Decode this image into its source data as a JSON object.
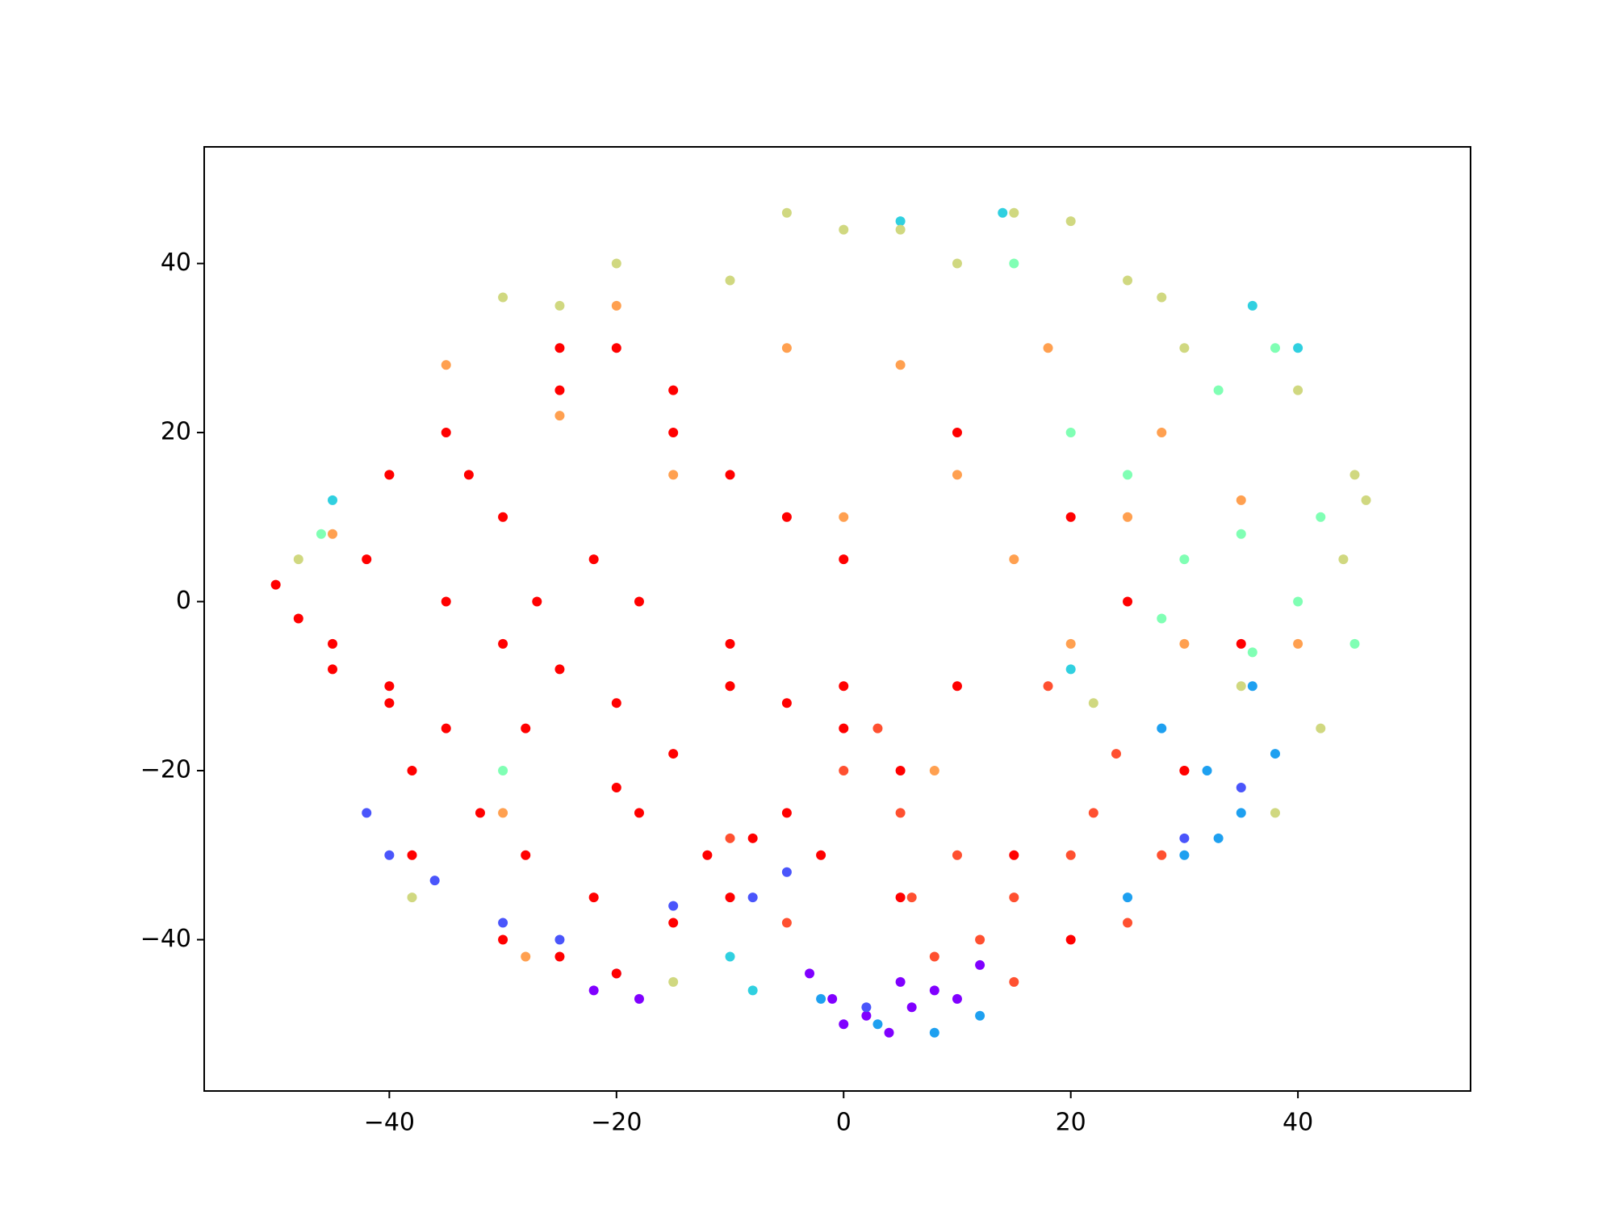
{
  "chart_data": {
    "type": "scatter",
    "xlim": [
      -56.3,
      55.2
    ],
    "ylim": [
      -57.9,
      53.8
    ],
    "xticks": [
      {
        "value": -40,
        "label": "−40"
      },
      {
        "value": -20,
        "label": "−20"
      },
      0,
      20,
      40
    ],
    "yticks": [
      {
        "value": -40,
        "label": "−40"
      },
      {
        "value": -20,
        "label": "−20"
      },
      0,
      20,
      40
    ],
    "series": [
      {
        "color": "#8000ff",
        "x": [
          0,
          2,
          4,
          -1,
          6,
          8,
          -3,
          10,
          -22,
          -18,
          5,
          12
        ],
        "y": [
          -50,
          -49,
          -51,
          -47,
          -48,
          -46,
          -44,
          -47,
          -46,
          -47,
          -45,
          -43
        ]
      },
      {
        "color": "#4a55fb",
        "x": [
          -40,
          -36,
          -30,
          -25,
          -20,
          -15,
          -8,
          30,
          35,
          -42,
          2,
          -5
        ],
        "y": [
          -30,
          -33,
          -38,
          -40,
          -44,
          -36,
          -35,
          -28,
          -22,
          -25,
          -48,
          -32
        ]
      },
      {
        "color": "#1ea0f0",
        "x": [
          28,
          32,
          35,
          30,
          38,
          25,
          3,
          8,
          12,
          -2,
          36,
          33
        ],
        "y": [
          -15,
          -20,
          -25,
          -30,
          -18,
          -35,
          -50,
          -51,
          -49,
          -47,
          -10,
          -28
        ]
      },
      {
        "color": "#30d0e0",
        "x": [
          5,
          14,
          36,
          40,
          -45,
          -10,
          20,
          -8
        ],
        "y": [
          45,
          46,
          35,
          30,
          12,
          -42,
          -8,
          -46
        ]
      },
      {
        "color": "#80ffb4",
        "x": [
          30,
          35,
          40,
          25,
          45,
          20,
          33,
          38,
          28,
          42,
          15,
          36,
          -30,
          -46
        ],
        "y": [
          5,
          8,
          0,
          15,
          -5,
          20,
          25,
          30,
          -2,
          10,
          40,
          -6,
          -20,
          8
        ]
      },
      {
        "color": "#d0d880",
        "x": [
          -5,
          0,
          10,
          20,
          25,
          30,
          40,
          45,
          44,
          35,
          -20,
          -25,
          -10,
          5,
          15,
          38,
          46,
          42,
          -30,
          -15,
          -38,
          28,
          22,
          -48
        ],
        "y": [
          46,
          44,
          40,
          45,
          38,
          30,
          25,
          15,
          5,
          -10,
          40,
          35,
          38,
          44,
          46,
          -25,
          12,
          -15,
          36,
          -45,
          -35,
          36,
          -12,
          5
        ]
      },
      {
        "color": "#ffa050",
        "x": [
          -35,
          -25,
          -15,
          -5,
          0,
          10,
          15,
          25,
          30,
          -40,
          -45,
          -20,
          5,
          20,
          35,
          -30,
          -10,
          18,
          28,
          8,
          -28,
          40
        ],
        "y": [
          28,
          22,
          15,
          30,
          10,
          15,
          5,
          10,
          -5,
          15,
          8,
          35,
          28,
          -5,
          12,
          -25,
          -10,
          30,
          20,
          -20,
          -42,
          -5
        ]
      },
      {
        "color": "#ff5030",
        "x": [
          0,
          5,
          10,
          15,
          20,
          25,
          -5,
          8,
          12,
          22,
          3,
          18,
          28,
          30,
          -10,
          15,
          6,
          24
        ],
        "y": [
          -20,
          -25,
          -30,
          -35,
          -30,
          -38,
          -38,
          -42,
          -40,
          -25,
          -15,
          -10,
          -30,
          -20,
          -28,
          -45,
          -35,
          -18
        ]
      },
      {
        "color": "#ff0000",
        "x": [
          -50,
          -45,
          -40,
          -35,
          -30,
          -25,
          -20,
          -15,
          -10,
          -5,
          0,
          5,
          -48,
          -42,
          -38,
          -32,
          -28,
          -22,
          -18,
          -12,
          -40,
          -35,
          -30,
          -25,
          -20,
          -15,
          -10,
          -30,
          -25,
          -20,
          -15,
          -10,
          -5,
          -2,
          0,
          -28,
          -22,
          -35,
          -38,
          -45,
          -20,
          -10,
          0,
          10,
          15,
          20,
          25,
          -25,
          -15,
          -5,
          10,
          5,
          20,
          30,
          35,
          -33,
          -18,
          -8,
          -40,
          -27
        ],
        "y": [
          2,
          -5,
          -10,
          -15,
          -5,
          -8,
          -12,
          -18,
          -10,
          -12,
          -15,
          -20,
          -2,
          5,
          -20,
          -25,
          -30,
          -35,
          -25,
          -30,
          15,
          20,
          10,
          25,
          30,
          20,
          15,
          -40,
          -42,
          -44,
          -38,
          -35,
          -25,
          -30,
          -10,
          -15,
          5,
          0,
          -30,
          -8,
          -22,
          -5,
          5,
          20,
          -30,
          10,
          0,
          30,
          25,
          10,
          -10,
          -35,
          -40,
          -20,
          -5,
          15,
          0,
          -28,
          -12,
          0
        ]
      }
    ]
  }
}
